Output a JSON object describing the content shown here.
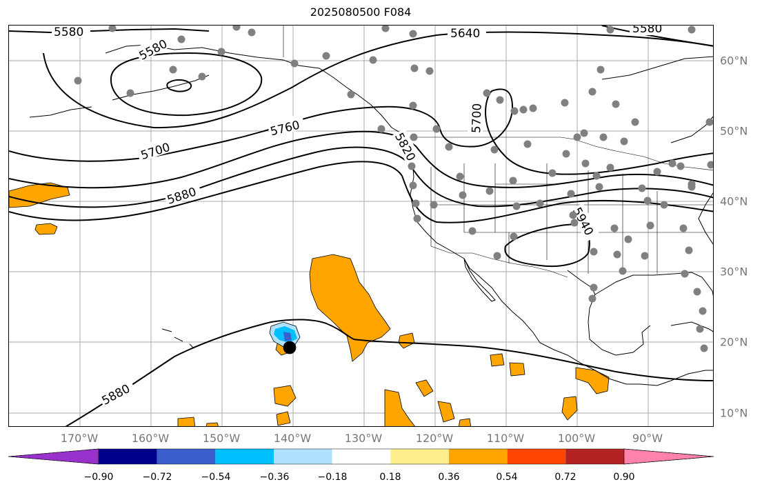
{
  "title": "2025080500 F084",
  "lon_labels": [
    "170°W",
    "160°W",
    "150°W",
    "140°W",
    "130°W",
    "120°W",
    "110°W",
    "100°W",
    "90°W"
  ],
  "lat_labels": [
    "60°N",
    "50°N",
    "40°N",
    "30°N",
    "20°N",
    "10°N"
  ],
  "contour_labels": [
    "5580",
    "5580",
    "5640",
    "5580",
    "5700",
    "5760",
    "5820",
    "5700",
    "5880",
    "5940",
    "5880"
  ],
  "colorbar": {
    "colors": [
      "#9932cc",
      "#00008b",
      "#3a5fcd",
      "#00bfff",
      "#b0e2ff",
      "#ffffff",
      "#ffee8c",
      "#ffa500",
      "#ff4500",
      "#b22222",
      "#ff82ab"
    ],
    "tick_labels": [
      "−0.90",
      "−0.72",
      "−0.54",
      "−0.36",
      "−0.18",
      "0.18",
      "0.36",
      "0.54",
      "0.72",
      "0.90"
    ]
  },
  "colors": {
    "grid": "#aaaaaa",
    "station": "#808080",
    "orange": "#ffa500",
    "contour": "#000000"
  },
  "tropical_cyclone_marker": "black-circle"
}
